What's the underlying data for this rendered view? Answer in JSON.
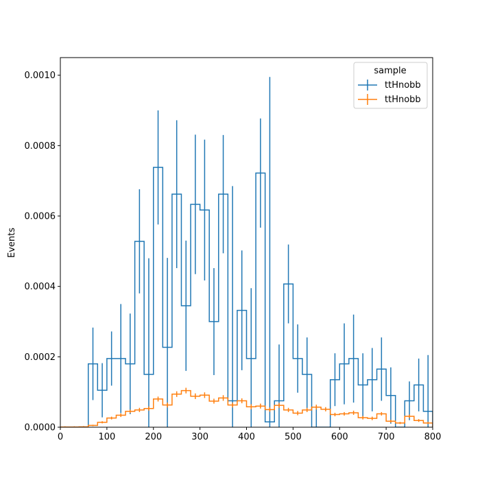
{
  "chart_data": {
    "type": "histogram",
    "title": "",
    "xlabel": "",
    "ylabel": "Events",
    "xlim": [
      0,
      800
    ],
    "ylim": [
      0,
      0.00105
    ],
    "bin_width": 20,
    "x_ticks": [
      "0",
      "100",
      "200",
      "300",
      "400",
      "500",
      "600",
      "700",
      "800"
    ],
    "y_ticks": [
      "0.0000",
      "0.0002",
      "0.0004",
      "0.0006",
      "0.0008",
      "0.0010"
    ],
    "legend": {
      "title": "sample",
      "placement": "upper right",
      "entries": [
        "ttHnobb",
        "ttHnobb"
      ]
    },
    "series": [
      {
        "name": "ttHnobb",
        "color": "#1f77b4",
        "bins": [
          {
            "x0": 60,
            "x1": 80,
            "y": 0.00018,
            "err": 0.000103
          },
          {
            "x0": 80,
            "x1": 100,
            "y": 0.000105,
            "err": 7.7e-05
          },
          {
            "x0": 100,
            "x1": 120,
            "y": 0.000195,
            "err": 7.7e-05
          },
          {
            "x0": 120,
            "x1": 140,
            "y": 0.000195,
            "err": 0.000155
          },
          {
            "x0": 140,
            "x1": 160,
            "y": 0.00018,
            "err": 0.000143
          },
          {
            "x0": 160,
            "x1": 180,
            "y": 0.000528,
            "err": 0.000148
          },
          {
            "x0": 180,
            "x1": 200,
            "y": 0.00015,
            "err": 0.00033
          },
          {
            "x0": 200,
            "x1": 220,
            "y": 0.000738,
            "err": 0.000162
          },
          {
            "x0": 220,
            "x1": 240,
            "y": 0.000227,
            "err": 0.000254
          },
          {
            "x0": 240,
            "x1": 260,
            "y": 0.000662,
            "err": 0.00021
          },
          {
            "x0": 260,
            "x1": 280,
            "y": 0.000345,
            "err": 0.000185
          },
          {
            "x0": 280,
            "x1": 300,
            "y": 0.000633,
            "err": 0.000198
          },
          {
            "x0": 300,
            "x1": 320,
            "y": 0.000617,
            "err": 0.0002
          },
          {
            "x0": 320,
            "x1": 340,
            "y": 0.0003,
            "err": 0.000152
          },
          {
            "x0": 340,
            "x1": 360,
            "y": 0.000662,
            "err": 0.000168
          },
          {
            "x0": 360,
            "x1": 380,
            "y": 7.5e-05,
            "err": 0.00061
          },
          {
            "x0": 380,
            "x1": 400,
            "y": 0.000332,
            "err": 0.00017
          },
          {
            "x0": 400,
            "x1": 420,
            "y": 0.000195,
            "err": 0.0002
          },
          {
            "x0": 420,
            "x1": 440,
            "y": 0.000722,
            "err": 0.000155
          },
          {
            "x0": 440,
            "x1": 460,
            "y": 1.5e-05,
            "err": 0.00098
          },
          {
            "x0": 460,
            "x1": 480,
            "y": 7.5e-05,
            "err": 0.00016
          },
          {
            "x0": 480,
            "x1": 500,
            "y": 0.000407,
            "err": 0.000112
          },
          {
            "x0": 500,
            "x1": 520,
            "y": 0.000195,
            "err": 9.7e-05
          },
          {
            "x0": 520,
            "x1": 540,
            "y": 0.00015,
            "err": 0.000105
          },
          {
            "x0": 540,
            "x1": 560,
            "y": 0.0,
            "err": 6e-05
          },
          {
            "x0": 560,
            "x1": 580,
            "y": 0.0,
            "err": 0.0
          },
          {
            "x0": 580,
            "x1": 600,
            "y": 0.000135,
            "err": 7.5e-05
          },
          {
            "x0": 600,
            "x1": 620,
            "y": 0.00018,
            "err": 0.000115
          },
          {
            "x0": 620,
            "x1": 640,
            "y": 0.000195,
            "err": 0.000125
          },
          {
            "x0": 640,
            "x1": 660,
            "y": 0.00012,
            "err": 9e-05
          },
          {
            "x0": 660,
            "x1": 680,
            "y": 0.000135,
            "err": 9e-05
          },
          {
            "x0": 680,
            "x1": 700,
            "y": 0.000165,
            "err": 9e-05
          },
          {
            "x0": 700,
            "x1": 720,
            "y": 9e-05,
            "err": 8e-05
          },
          {
            "x0": 720,
            "x1": 740,
            "y": 0.0,
            "err": 0.0
          },
          {
            "x0": 740,
            "x1": 760,
            "y": 7.5e-05,
            "err": 5.5e-05
          },
          {
            "x0": 760,
            "x1": 780,
            "y": 0.00012,
            "err": 7.5e-05
          },
          {
            "x0": 780,
            "x1": 800,
            "y": 4.5e-05,
            "err": 0.00016
          }
        ]
      },
      {
        "name": "ttHnobb",
        "color": "#ff7f0e",
        "bins": [
          {
            "x0": 0,
            "x1": 20,
            "y": 5e-07,
            "err": 2e-06
          },
          {
            "x0": 20,
            "x1": 40,
            "y": 5e-07,
            "err": 2e-06
          },
          {
            "x0": 40,
            "x1": 60,
            "y": 1e-06,
            "err": 2e-06
          },
          {
            "x0": 60,
            "x1": 80,
            "y": 5e-06,
            "err": 2e-06
          },
          {
            "x0": 80,
            "x1": 100,
            "y": 1.4e-05,
            "err": 3e-06
          },
          {
            "x0": 100,
            "x1": 120,
            "y": 2.6e-05,
            "err": 4e-06
          },
          {
            "x0": 120,
            "x1": 140,
            "y": 3.4e-05,
            "err": 5e-06
          },
          {
            "x0": 140,
            "x1": 160,
            "y": 4.5e-05,
            "err": 5e-06
          },
          {
            "x0": 160,
            "x1": 180,
            "y": 4.9e-05,
            "err": 6e-06
          },
          {
            "x0": 180,
            "x1": 200,
            "y": 5.3e-05,
            "err": 6e-06
          },
          {
            "x0": 200,
            "x1": 220,
            "y": 8e-05,
            "err": 7e-06
          },
          {
            "x0": 220,
            "x1": 240,
            "y": 6.3e-05,
            "err": 7e-06
          },
          {
            "x0": 240,
            "x1": 260,
            "y": 9.4e-05,
            "err": 8e-06
          },
          {
            "x0": 260,
            "x1": 280,
            "y": 0.000104,
            "err": 8e-06
          },
          {
            "x0": 280,
            "x1": 300,
            "y": 8.8e-05,
            "err": 8e-06
          },
          {
            "x0": 300,
            "x1": 320,
            "y": 9.1e-05,
            "err": 8e-06
          },
          {
            "x0": 320,
            "x1": 340,
            "y": 7.4e-05,
            "err": 7e-06
          },
          {
            "x0": 340,
            "x1": 360,
            "y": 8.3e-05,
            "err": 8e-06
          },
          {
            "x0": 360,
            "x1": 380,
            "y": 6.3e-05,
            "err": 7e-06
          },
          {
            "x0": 380,
            "x1": 400,
            "y": 7.5e-05,
            "err": 7e-06
          },
          {
            "x0": 400,
            "x1": 420,
            "y": 5.8e-05,
            "err": 7e-06
          },
          {
            "x0": 420,
            "x1": 440,
            "y": 6e-05,
            "err": 7e-06
          },
          {
            "x0": 440,
            "x1": 460,
            "y": 5e-05,
            "err": 6e-06
          },
          {
            "x0": 460,
            "x1": 480,
            "y": 6.2e-05,
            "err": 7e-06
          },
          {
            "x0": 480,
            "x1": 500,
            "y": 4.9e-05,
            "err": 6e-06
          },
          {
            "x0": 500,
            "x1": 520,
            "y": 4e-05,
            "err": 6e-06
          },
          {
            "x0": 520,
            "x1": 540,
            "y": 4.9e-05,
            "err": 6e-06
          },
          {
            "x0": 540,
            "x1": 560,
            "y": 5.7e-05,
            "err": 7e-06
          },
          {
            "x0": 560,
            "x1": 580,
            "y": 5.1e-05,
            "err": 6e-06
          },
          {
            "x0": 580,
            "x1": 600,
            "y": 3.6e-05,
            "err": 5e-06
          },
          {
            "x0": 600,
            "x1": 620,
            "y": 3.8e-05,
            "err": 5e-06
          },
          {
            "x0": 620,
            "x1": 640,
            "y": 4.1e-05,
            "err": 6e-06
          },
          {
            "x0": 640,
            "x1": 660,
            "y": 2.7e-05,
            "err": 5e-06
          },
          {
            "x0": 660,
            "x1": 680,
            "y": 2.5e-05,
            "err": 5e-06
          },
          {
            "x0": 680,
            "x1": 700,
            "y": 3.8e-05,
            "err": 5e-06
          },
          {
            "x0": 700,
            "x1": 720,
            "y": 1.7e-05,
            "err": 4e-06
          },
          {
            "x0": 720,
            "x1": 740,
            "y": 1.2e-05,
            "err": 3e-06
          },
          {
            "x0": 740,
            "x1": 760,
            "y": 3.1e-05,
            "err": 5e-06
          },
          {
            "x0": 760,
            "x1": 780,
            "y": 1.9e-05,
            "err": 4e-06
          },
          {
            "x0": 780,
            "x1": 800,
            "y": 1.2e-05,
            "err": 3e-06
          }
        ]
      }
    ]
  }
}
